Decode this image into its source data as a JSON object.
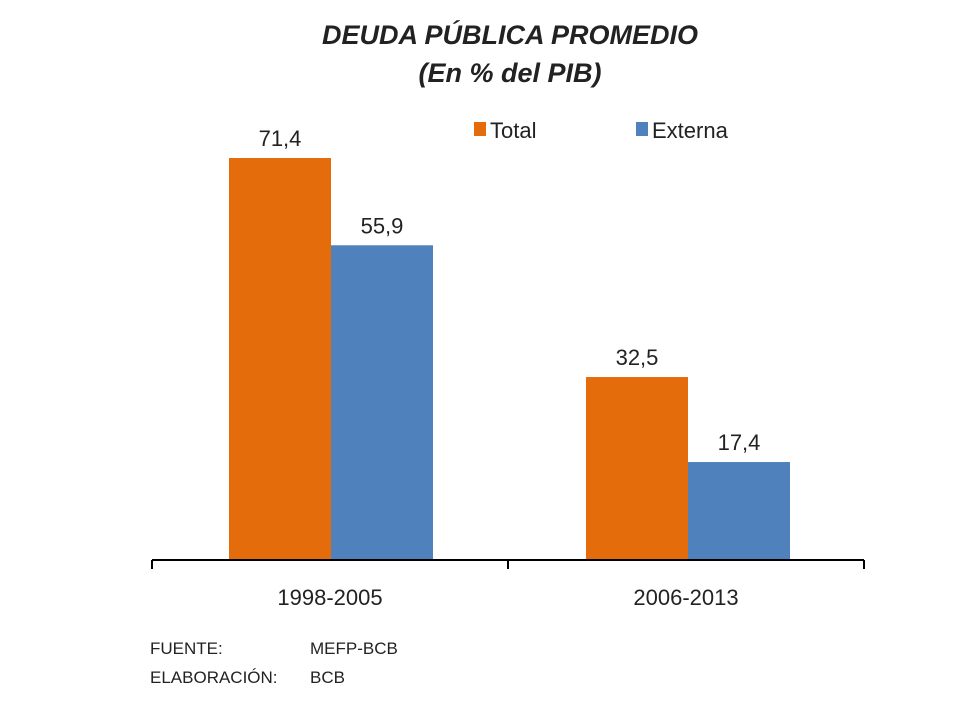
{
  "chart_data": {
    "type": "bar",
    "title": "DEUDA PÚBLICA PROMEDIO",
    "subtitle": "(En % del PIB)",
    "categories": [
      "1998-2005",
      "2006-2013"
    ],
    "series": [
      {
        "name": "Total",
        "values": [
          71.4,
          32.5
        ],
        "labels": [
          "71,4",
          "32,5"
        ],
        "color": "#E46C0A"
      },
      {
        "name": "Externa",
        "values": [
          55.9,
          17.4
        ],
        "labels": [
          "55,9",
          "17,4"
        ],
        "color": "#4F81BD"
      }
    ],
    "xlabel": "",
    "ylabel": "",
    "ylim": [
      0,
      100
    ],
    "grid": false,
    "legend_position": "top-right"
  },
  "notes": {
    "source_label": "FUENTE:",
    "source_value": "MEFP-BCB",
    "prepared_label": "ELABORACIÓN:",
    "prepared_value": "BCB"
  }
}
